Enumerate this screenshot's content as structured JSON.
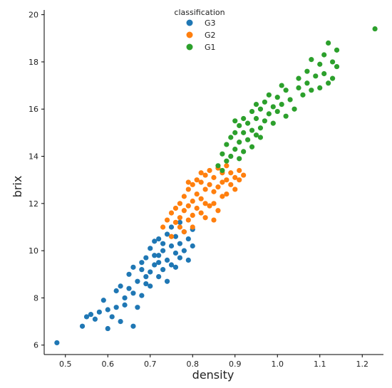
{
  "chart_data": {
    "type": "scatter",
    "xlabel": "density",
    "ylabel": "brix",
    "xlim": [
      0.45,
      1.25
    ],
    "ylim": [
      5.6,
      20.2
    ],
    "x_ticks": [
      0.5,
      0.6,
      0.7,
      0.8,
      0.9,
      1.0,
      1.1,
      1.2
    ],
    "x_tick_labels": [
      "0.5",
      "0.6",
      "0.7",
      "0.8",
      "0.9",
      "1.0",
      "1.1",
      "1.2"
    ],
    "y_ticks": [
      6,
      8,
      10,
      12,
      14,
      16,
      18,
      20
    ],
    "y_tick_labels": [
      "6",
      "8",
      "10",
      "12",
      "14",
      "16",
      "18",
      "20"
    ],
    "grid": false,
    "legend": {
      "title": "classification",
      "placement": "top-center"
    },
    "series": [
      {
        "name": "G3",
        "color": "#1f77b4",
        "points": [
          [
            0.48,
            6.1
          ],
          [
            0.54,
            6.8
          ],
          [
            0.55,
            7.2
          ],
          [
            0.56,
            7.3
          ],
          [
            0.57,
            7.1
          ],
          [
            0.58,
            7.4
          ],
          [
            0.59,
            7.9
          ],
          [
            0.6,
            7.5
          ],
          [
            0.6,
            6.7
          ],
          [
            0.61,
            7.2
          ],
          [
            0.62,
            7.6
          ],
          [
            0.62,
            8.3
          ],
          [
            0.63,
            8.5
          ],
          [
            0.63,
            7.0
          ],
          [
            0.64,
            7.7
          ],
          [
            0.64,
            8.0
          ],
          [
            0.65,
            8.4
          ],
          [
            0.65,
            9.0
          ],
          [
            0.66,
            8.2
          ],
          [
            0.66,
            9.3
          ],
          [
            0.66,
            6.8
          ],
          [
            0.67,
            8.7
          ],
          [
            0.67,
            7.6
          ],
          [
            0.68,
            9.5
          ],
          [
            0.68,
            8.1
          ],
          [
            0.69,
            8.9
          ],
          [
            0.69,
            9.7
          ],
          [
            0.7,
            9.1
          ],
          [
            0.7,
            8.5
          ],
          [
            0.7,
            10.1
          ],
          [
            0.71,
            9.4
          ],
          [
            0.71,
            10.4
          ],
          [
            0.72,
            8.9
          ],
          [
            0.72,
            9.8
          ],
          [
            0.72,
            10.5
          ],
          [
            0.73,
            9.2
          ],
          [
            0.73,
            10.0
          ],
          [
            0.74,
            9.6
          ],
          [
            0.74,
            10.7
          ],
          [
            0.74,
            8.7
          ],
          [
            0.75,
            10.2
          ],
          [
            0.75,
            9.4
          ],
          [
            0.75,
            11.0
          ],
          [
            0.76,
            9.9
          ],
          [
            0.76,
            10.6
          ],
          [
            0.77,
            10.3
          ],
          [
            0.77,
            9.7
          ],
          [
            0.77,
            11.2
          ],
          [
            0.78,
            10.8
          ],
          [
            0.78,
            10.0
          ],
          [
            0.79,
            10.5
          ],
          [
            0.79,
            9.6
          ],
          [
            0.8,
            10.9
          ],
          [
            0.8,
            10.2
          ],
          [
            0.71,
            9.8
          ],
          [
            0.73,
            10.3
          ],
          [
            0.76,
            9.3
          ],
          [
            0.68,
            9.2
          ],
          [
            0.69,
            8.6
          ],
          [
            0.72,
            9.5
          ]
        ]
      },
      {
        "name": "G2",
        "color": "#ff7f0e",
        "points": [
          [
            0.73,
            11.0
          ],
          [
            0.74,
            11.3
          ],
          [
            0.75,
            11.6
          ],
          [
            0.75,
            10.6
          ],
          [
            0.76,
            11.8
          ],
          [
            0.76,
            11.2
          ],
          [
            0.77,
            12.0
          ],
          [
            0.77,
            11.4
          ],
          [
            0.78,
            11.7
          ],
          [
            0.78,
            12.3
          ],
          [
            0.78,
            10.8
          ],
          [
            0.79,
            11.9
          ],
          [
            0.79,
            12.6
          ],
          [
            0.79,
            11.3
          ],
          [
            0.8,
            12.1
          ],
          [
            0.8,
            12.8
          ],
          [
            0.8,
            11.5
          ],
          [
            0.81,
            12.4
          ],
          [
            0.81,
            11.8
          ],
          [
            0.81,
            13.0
          ],
          [
            0.82,
            12.2
          ],
          [
            0.82,
            12.9
          ],
          [
            0.82,
            11.6
          ],
          [
            0.83,
            12.6
          ],
          [
            0.83,
            13.2
          ],
          [
            0.83,
            12.0
          ],
          [
            0.84,
            12.8
          ],
          [
            0.84,
            13.4
          ],
          [
            0.84,
            11.9
          ],
          [
            0.85,
            12.5
          ],
          [
            0.85,
            13.1
          ],
          [
            0.85,
            12.0
          ],
          [
            0.86,
            12.7
          ],
          [
            0.86,
            13.5
          ],
          [
            0.86,
            11.7
          ],
          [
            0.87,
            12.9
          ],
          [
            0.87,
            13.3
          ],
          [
            0.87,
            12.3
          ],
          [
            0.88,
            13.0
          ],
          [
            0.88,
            12.4
          ],
          [
            0.88,
            13.6
          ],
          [
            0.89,
            12.8
          ],
          [
            0.89,
            13.3
          ],
          [
            0.9,
            13.1
          ],
          [
            0.9,
            12.6
          ],
          [
            0.91,
            13.4
          ],
          [
            0.91,
            13.0
          ],
          [
            0.92,
            13.2
          ],
          [
            0.8,
            11.0
          ],
          [
            0.83,
            11.4
          ],
          [
            0.85,
            11.3
          ],
          [
            0.77,
            11.0
          ],
          [
            0.82,
            13.3
          ],
          [
            0.79,
            12.9
          ]
        ]
      },
      {
        "name": "G1",
        "color": "#2ca02c",
        "points": [
          [
            0.86,
            13.6
          ],
          [
            0.87,
            14.1
          ],
          [
            0.88,
            13.8
          ],
          [
            0.88,
            14.5
          ],
          [
            0.89,
            14.0
          ],
          [
            0.89,
            14.8
          ],
          [
            0.9,
            14.3
          ],
          [
            0.9,
            15.0
          ],
          [
            0.91,
            13.9
          ],
          [
            0.91,
            14.6
          ],
          [
            0.91,
            15.3
          ],
          [
            0.92,
            14.2
          ],
          [
            0.92,
            15.0
          ],
          [
            0.92,
            15.6
          ],
          [
            0.93,
            14.7
          ],
          [
            0.93,
            15.4
          ],
          [
            0.94,
            14.4
          ],
          [
            0.94,
            15.1
          ],
          [
            0.94,
            15.9
          ],
          [
            0.95,
            14.9
          ],
          [
            0.95,
            15.6
          ],
          [
            0.95,
            16.2
          ],
          [
            0.96,
            15.2
          ],
          [
            0.96,
            16.0
          ],
          [
            0.97,
            15.5
          ],
          [
            0.97,
            16.3
          ],
          [
            0.98,
            15.8
          ],
          [
            0.98,
            16.6
          ],
          [
            0.99,
            15.4
          ],
          [
            0.99,
            16.1
          ],
          [
            1.0,
            15.9
          ],
          [
            1.0,
            16.5
          ],
          [
            1.01,
            16.2
          ],
          [
            1.02,
            15.7
          ],
          [
            1.02,
            16.8
          ],
          [
            1.03,
            16.4
          ],
          [
            1.04,
            16.0
          ],
          [
            1.05,
            16.9
          ],
          [
            1.05,
            17.3
          ],
          [
            1.06,
            16.6
          ],
          [
            1.07,
            17.1
          ],
          [
            1.07,
            17.6
          ],
          [
            1.08,
            16.8
          ],
          [
            1.08,
            18.1
          ],
          [
            1.09,
            17.4
          ],
          [
            1.1,
            17.9
          ],
          [
            1.1,
            16.9
          ],
          [
            1.11,
            17.5
          ],
          [
            1.11,
            18.3
          ],
          [
            1.12,
            17.1
          ],
          [
            1.12,
            18.8
          ],
          [
            1.13,
            18.0
          ],
          [
            1.13,
            17.3
          ],
          [
            1.14,
            18.5
          ],
          [
            1.14,
            17.8
          ],
          [
            1.23,
            19.4
          ],
          [
            0.9,
            15.5
          ],
          [
            0.96,
            14.8
          ],
          [
            1.01,
            17.0
          ],
          [
            0.87,
            13.4
          ]
        ]
      }
    ]
  }
}
